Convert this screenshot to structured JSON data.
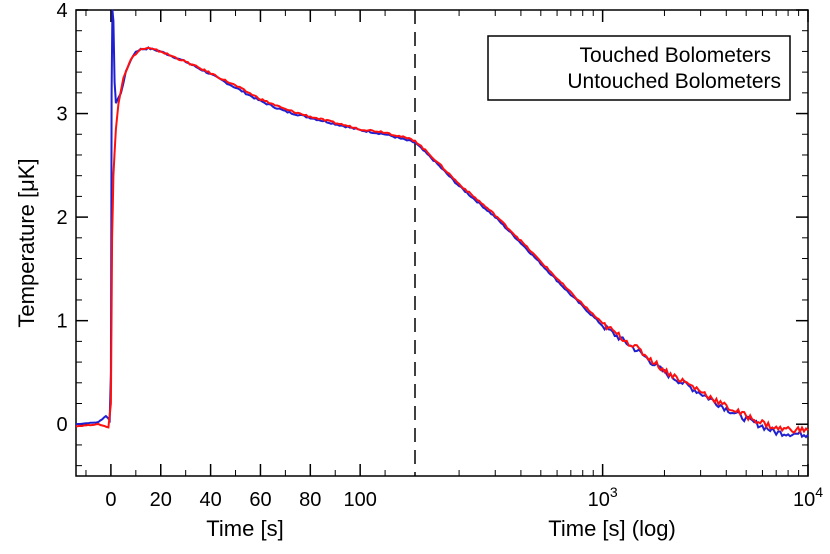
{
  "chart_data": {
    "type": "line",
    "title": "",
    "ylabel": "Temperature [μK]",
    "ylim": [
      -0.5,
      4.0
    ],
    "yticks": [
      "0",
      "1",
      "2",
      "3",
      "4"
    ],
    "grid": false,
    "legend": {
      "placement": "top-right",
      "boxed": true
    },
    "panels": [
      {
        "name": "linear",
        "xlabel": "Time [s]",
        "xscale": "linear",
        "xlim": [
          -14,
          122
        ],
        "xticks": [
          "0",
          "20",
          "40",
          "60",
          "80",
          "100"
        ]
      },
      {
        "name": "log",
        "xlabel": "Time [s] (log)",
        "xscale": "log",
        "xlim": [
          122,
          10000
        ],
        "xticks": [
          "10^3",
          "10^4"
        ]
      }
    ],
    "divider": {
      "x": 122,
      "style": "dashed"
    },
    "series": [
      {
        "name": "Touched Bolometers",
        "color": "#2020d0",
        "points": [
          [
            -14,
            0.0
          ],
          [
            -5,
            0.02
          ],
          [
            -2,
            0.08
          ],
          [
            -0.5,
            0.04
          ],
          [
            0,
            0.5
          ],
          [
            0.3,
            3.2
          ],
          [
            0.6,
            4.0
          ],
          [
            1,
            3.9
          ],
          [
            1.5,
            3.3
          ],
          [
            2,
            3.1
          ],
          [
            4,
            3.2
          ],
          [
            6,
            3.4
          ],
          [
            8,
            3.52
          ],
          [
            10,
            3.6
          ],
          [
            12,
            3.62
          ],
          [
            15,
            3.63
          ],
          [
            20,
            3.6
          ],
          [
            30,
            3.5
          ],
          [
            40,
            3.38
          ],
          [
            50,
            3.25
          ],
          [
            60,
            3.12
          ],
          [
            70,
            3.02
          ],
          [
            80,
            2.96
          ],
          [
            90,
            2.9
          ],
          [
            100,
            2.84
          ],
          [
            110,
            2.8
          ],
          [
            122,
            2.72
          ],
          [
            150,
            2.55
          ],
          [
            200,
            2.3
          ],
          [
            300,
            2.0
          ],
          [
            400,
            1.75
          ],
          [
            500,
            1.55
          ],
          [
            700,
            1.25
          ],
          [
            1000,
            0.95
          ],
          [
            1500,
            0.7
          ],
          [
            2000,
            0.5
          ],
          [
            3000,
            0.3
          ],
          [
            4000,
            0.15
          ],
          [
            5000,
            0.05
          ],
          [
            7000,
            -0.08
          ],
          [
            10000,
            -0.1
          ]
        ]
      },
      {
        "name": "Untouched Bolometers",
        "color": "#ff1010",
        "points": [
          [
            -14,
            -0.02
          ],
          [
            -5,
            0.0
          ],
          [
            -1,
            -0.03
          ],
          [
            0,
            0.2
          ],
          [
            0.5,
            1.8
          ],
          [
            1,
            2.4
          ],
          [
            2,
            2.85
          ],
          [
            3,
            3.1
          ],
          [
            5,
            3.35
          ],
          [
            8,
            3.52
          ],
          [
            10,
            3.58
          ],
          [
            12,
            3.62
          ],
          [
            15,
            3.63
          ],
          [
            20,
            3.6
          ],
          [
            30,
            3.5
          ],
          [
            40,
            3.39
          ],
          [
            50,
            3.27
          ],
          [
            60,
            3.14
          ],
          [
            70,
            3.04
          ],
          [
            80,
            2.97
          ],
          [
            90,
            2.91
          ],
          [
            100,
            2.85
          ],
          [
            110,
            2.82
          ],
          [
            122,
            2.74
          ],
          [
            150,
            2.57
          ],
          [
            200,
            2.32
          ],
          [
            300,
            2.02
          ],
          [
            400,
            1.77
          ],
          [
            500,
            1.57
          ],
          [
            700,
            1.27
          ],
          [
            1000,
            0.97
          ],
          [
            1500,
            0.72
          ],
          [
            2000,
            0.52
          ],
          [
            3000,
            0.32
          ],
          [
            4000,
            0.17
          ],
          [
            5000,
            0.08
          ],
          [
            7000,
            -0.04
          ],
          [
            10000,
            -0.06
          ]
        ]
      }
    ]
  }
}
